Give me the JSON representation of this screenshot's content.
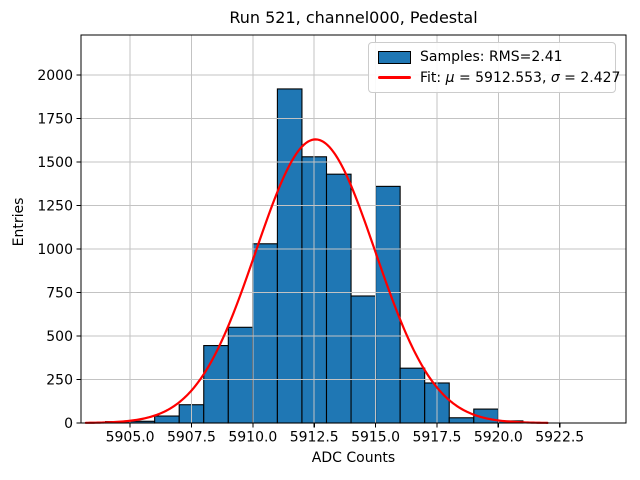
{
  "chart_data": {
    "type": "bar",
    "subtype": "histogram",
    "title": "Run 521, channel000, Pedestal",
    "xlabel": "ADC Counts",
    "ylabel": "Entries",
    "bin_edges": [
      5904,
      5905,
      5906,
      5907,
      5908,
      5909,
      5910,
      5911,
      5912,
      5913,
      5914,
      5915,
      5916,
      5917,
      5918,
      5919,
      5920,
      5921
    ],
    "counts": [
      8,
      10,
      40,
      105,
      445,
      550,
      1030,
      1920,
      1530,
      1430,
      730,
      1360,
      315,
      230,
      30,
      80,
      12
    ],
    "x_tick_values": [
      5905.0,
      5907.5,
      5910.0,
      5912.5,
      5915.0,
      5917.5,
      5920.0,
      5922.5
    ],
    "x_tick_labels": [
      "5905.0",
      "5907.5",
      "5910.0",
      "5912.5",
      "5915.0",
      "5917.5",
      "5920.0",
      "5922.5"
    ],
    "y_tick_values": [
      0,
      250,
      500,
      750,
      1000,
      1250,
      1500,
      1750,
      2000
    ],
    "y_tick_labels": [
      "0",
      "250",
      "500",
      "750",
      "1000",
      "1250",
      "1500",
      "1750",
      "2000"
    ],
    "xlim": [
      5903.0,
      5925.2
    ],
    "ylim": [
      0,
      2230
    ],
    "grid": true,
    "fit": {
      "mu": 5912.553,
      "sigma": 2.427,
      "amplitude": 1630,
      "x_range": [
        5903.2,
        5922.0
      ]
    },
    "legend": {
      "position": "top-right",
      "samples_label": "Samples: RMS=2.41",
      "fit_prefix": "Fit: ",
      "fit_mu_symbol": "μ",
      "fit_mu_value": " = 5912.553, ",
      "fit_sigma_symbol": "σ",
      "fit_sigma_value": " = 2.427"
    },
    "colors": {
      "bar_fill": "#1f77b4",
      "bar_edge": "#000000",
      "fit_line": "#ff0000",
      "grid": "#c3c3c3",
      "axis": "#000000"
    }
  }
}
